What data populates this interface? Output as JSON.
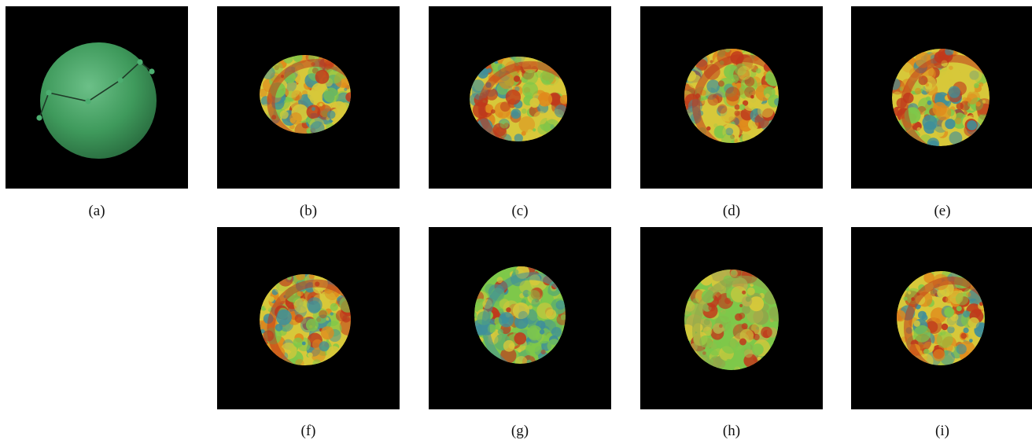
{
  "figure": {
    "panels": [
      {
        "id": "a",
        "caption": "(a)",
        "kind": "camera-path-sphere",
        "path_points": 6
      },
      {
        "id": "b",
        "caption": "(b)",
        "kind": "volume-render",
        "palette": [
          "#c0391b",
          "#e08a1c",
          "#d7c83a",
          "#7ec84a",
          "#3f8f9a"
        ]
      },
      {
        "id": "c",
        "caption": "(c)",
        "kind": "volume-render",
        "palette": [
          "#c0391b",
          "#e08a1c",
          "#d7c83a",
          "#7ec84a",
          "#3f8f9a"
        ]
      },
      {
        "id": "d",
        "caption": "(d)",
        "kind": "volume-render",
        "palette": [
          "#c0391b",
          "#e08a1c",
          "#d7c83a",
          "#7ec84a",
          "#3f8f9a"
        ]
      },
      {
        "id": "e",
        "caption": "(e)",
        "kind": "volume-render",
        "palette": [
          "#c0391b",
          "#e08a1c",
          "#d7c83a",
          "#7ec84a",
          "#3f8f9a"
        ]
      },
      {
        "id": "f",
        "caption": "(f)",
        "kind": "volume-render",
        "palette": [
          "#c0391b",
          "#e08a1c",
          "#d7c83a",
          "#7ec84a",
          "#3f8f9a"
        ]
      },
      {
        "id": "g",
        "caption": "(g)",
        "kind": "volume-render",
        "palette": [
          "#3f8f9a",
          "#5fb06a",
          "#7ec84a",
          "#d7c83a",
          "#c0391b"
        ]
      },
      {
        "id": "h",
        "caption": "(h)",
        "kind": "volume-render",
        "palette": [
          "#8fa84a",
          "#b8b04a",
          "#7ec84a",
          "#d7c83a",
          "#c0391b"
        ]
      },
      {
        "id": "i",
        "caption": "(i)",
        "kind": "volume-render",
        "palette": [
          "#c0391b",
          "#e08a1c",
          "#d7c83a",
          "#7ec84a",
          "#3f8f9a"
        ]
      }
    ],
    "colors": {
      "background": "#000000",
      "sphere": "#3f9a5c",
      "sphere_highlight": "#6cc088",
      "path_line": "#1f3a28",
      "path_node": "#4cae70"
    }
  }
}
